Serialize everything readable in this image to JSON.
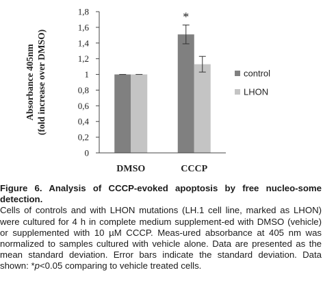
{
  "chart_data": {
    "type": "bar",
    "categories": [
      "DMSO",
      "CCCP"
    ],
    "series": [
      {
        "name": "control",
        "values": [
          1.0,
          1.51
        ],
        "errors": [
          0.0,
          0.12
        ],
        "color": "#808080"
      },
      {
        "name": "LHON",
        "values": [
          1.0,
          1.13
        ],
        "errors": [
          0.0,
          0.1
        ],
        "color": "#c4c4c4"
      }
    ],
    "ylabel_line1": "Absorbance 405nm",
    "ylabel_line2": "(fold increase over DMSO)",
    "ylim": [
      0,
      1.8
    ],
    "yticks": [
      0,
      0.2,
      0.4,
      0.6,
      0.8,
      1.0,
      1.2,
      1.4,
      1.6,
      1.8
    ],
    "ytick_labels": [
      "0",
      "0,2",
      "0,4",
      "0,6",
      "0,8",
      "1",
      "1,2",
      "1,4",
      "1,6",
      "1,8"
    ],
    "significance": {
      "category": "CCCP",
      "series": "control",
      "marker": "*"
    },
    "legend_position": "right",
    "grid": false
  },
  "caption": {
    "title": "Figure 6. Analysis of CCCP-evoked apoptosis by free nucleo-some detection.",
    "body_part1": "Cells of controls and with LHON mutations (LH.1 cell line, marked as LHON) were cultured for 4 h in complete medium supplement-ed with DMSO (vehicle) or supplemented with 10 µM CCCP. Meas-ured absorbance at 405 nm was normalized to samples cultured with vehicle alone. Data are presented as the mean  standard deviation. Error bars indicate the standard deviation. Data shown: *",
    "p_symbol": "p",
    "body_part2": "<0.05 comparing to vehicle treated cells."
  }
}
